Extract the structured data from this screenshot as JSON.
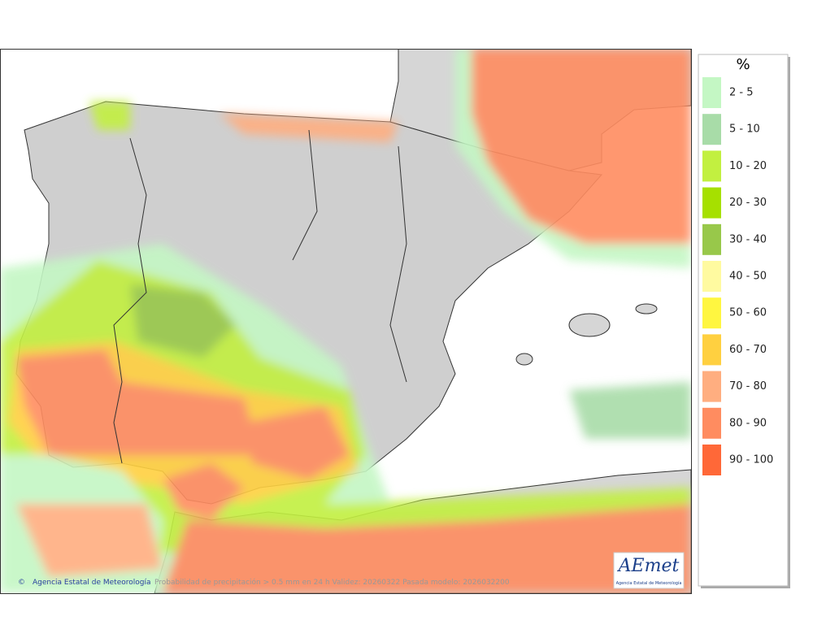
{
  "legend": {
    "title": "%",
    "items": [
      {
        "label": "2 - 5",
        "color": "#c4f7c4"
      },
      {
        "label": "5 - 10",
        "color": "#a8dca8"
      },
      {
        "label": "10 - 20",
        "color": "#c2f040"
      },
      {
        "label": "20 - 30",
        "color": "#a6e000"
      },
      {
        "label": "30 - 40",
        "color": "#98c84a"
      },
      {
        "label": "40 - 50",
        "color": "#fffaa0"
      },
      {
        "label": "50 - 60",
        "color": "#fff640"
      },
      {
        "label": "60 - 70",
        "color": "#ffd040"
      },
      {
        "label": "70 - 80",
        "color": "#ffae80"
      },
      {
        "label": "80 - 90",
        "color": "#ff8c60"
      },
      {
        "label": "90 - 100",
        "color": "#ff6838"
      }
    ]
  },
  "footer": {
    "credit": "Agencia Estatal de Meteorología",
    "caption": "Probabilidad de precipitación > 0.5 mm en 24 h Validez: 20260322 Pasada modelo: 2026032200"
  },
  "logo": {
    "name": "AEmet",
    "subtitle": "Agencia Estatal de Meteorología"
  }
}
